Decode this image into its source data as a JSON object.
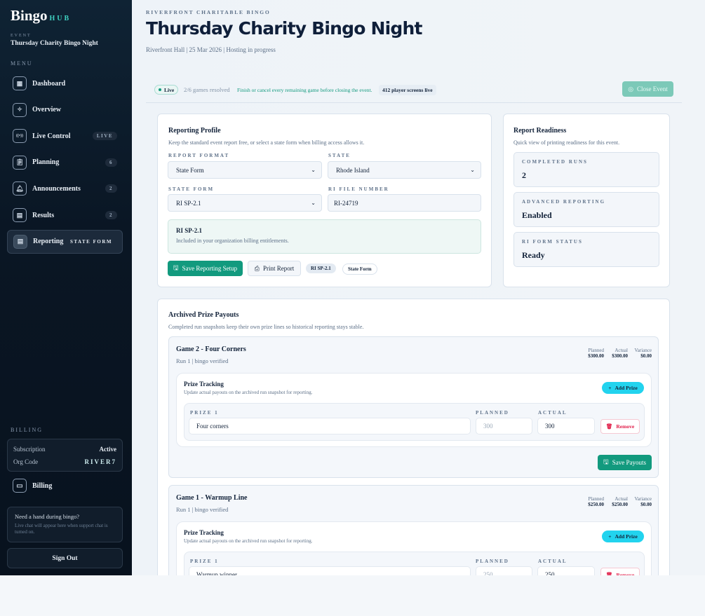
{
  "sidebar": {
    "logo_main": "Bingo",
    "logo_sub": "HUB",
    "event_label": "EVENT",
    "event_name": "Thursday Charity Bingo Night",
    "menu_label": "MENU",
    "items": [
      {
        "label": "Dashboard",
        "icon": "grid-icon",
        "badge": ""
      },
      {
        "label": "Overview",
        "icon": "sparkle-icon",
        "badge": ""
      },
      {
        "label": "Live Control",
        "icon": "broadcast-icon",
        "badge": "LIVE"
      },
      {
        "label": "Planning",
        "icon": "clipboard-icon",
        "badge": "6"
      },
      {
        "label": "Announcements",
        "icon": "bell-icon",
        "badge": "2"
      },
      {
        "label": "Results",
        "icon": "document-icon",
        "badge": "2"
      },
      {
        "label": "Reporting",
        "icon": "report-icon",
        "badge": "STATE FORM",
        "active": true
      }
    ],
    "billing_label": "BILLING",
    "subscription_label": "Subscription",
    "subscription_value": "Active",
    "org_code_label": "Org Code",
    "org_code_value": "RIVER7",
    "billing_link": "Billing",
    "help_title": "Need a hand during bingo?",
    "help_text": "Live chat will appear here when support chat is turned on.",
    "sign_out": "Sign Out"
  },
  "header": {
    "eyebrow": "RIVERFRONT CHARITABLE BINGO",
    "title": "Thursday Charity Bingo Night",
    "subtitle": "Riverfront Hall | 25 Mar 2026 | Hosting in progress"
  },
  "status": {
    "live": "Live",
    "games": "2/6 games resolved",
    "warning": "Finish or cancel every remaining game before closing the event.",
    "screens": "412 player screens live",
    "close_button": "Close Event"
  },
  "profile": {
    "title": "Reporting Profile",
    "desc": "Keep the standard event report free, or select a state form when billing access allows it.",
    "format_label": "REPORT FORMAT",
    "format_value": "State Form",
    "state_label": "STATE",
    "state_value": "Rhode Island",
    "form_label": "STATE FORM",
    "form_value": "RI SP-2.1",
    "file_label": "RI FILE NUMBER",
    "file_value": "RI-24719",
    "info_title": "RI SP-2.1",
    "info_text": "Included in your organization billing entitlements.",
    "save_button": "Save Reporting Setup",
    "print_button": "Print Report",
    "tag1": "RI SP-2.1",
    "tag2": "State Form"
  },
  "readiness": {
    "title": "Report Readiness",
    "desc": "Quick view of printing readiness for this event.",
    "items": [
      {
        "label": "COMPLETED RUNS",
        "value": "2"
      },
      {
        "label": "ADVANCED REPORTING",
        "value": "Enabled"
      },
      {
        "label": "RI FORM STATUS",
        "value": "Ready"
      }
    ]
  },
  "archive": {
    "title": "Archived Prize Payouts",
    "desc": "Completed run snapshots keep their own prize lines so historical reporting stays stable.",
    "planned_label": "Planned",
    "actual_label": "Actual",
    "variance_label": "Variance",
    "tracking_title": "Prize Tracking",
    "tracking_desc": "Update actual payouts on the archived run snapshot for reporting.",
    "add_prize": "Add Prize",
    "prize_label": "PRIZE 1",
    "planned_col": "PLANNED",
    "actual_col": "ACTUAL",
    "remove": "Remove",
    "save_payouts": "Save Payouts",
    "games": [
      {
        "title": "Game 2 - Four Corners",
        "run": "Run 1 | bingo verified",
        "planned": "$300.00",
        "actual": "$300.00",
        "variance": "$0.00",
        "prize": "Four corners",
        "prize_planned": "300",
        "prize_actual": "300"
      },
      {
        "title": "Game 1 - Warmup Line",
        "run": "Run 1 | bingo verified",
        "planned": "$250.00",
        "actual": "$250.00",
        "variance": "$0.00",
        "prize": "Warmup winner",
        "prize_planned": "250",
        "prize_actual": "250"
      }
    ]
  },
  "colors": {
    "accent": "#129a7e",
    "cyan": "#22d3ee",
    "sidebar": "#0a1624",
    "danger": "#e11d48"
  }
}
